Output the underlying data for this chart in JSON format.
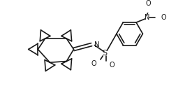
{
  "bg_color": "#ffffff",
  "line_color": "#1a1a1a",
  "lw": 1.2,
  "figsize": [
    2.75,
    1.3
  ],
  "dpi": 100,
  "xlim": [
    0,
    275
  ],
  "ylim": [
    0,
    130
  ]
}
